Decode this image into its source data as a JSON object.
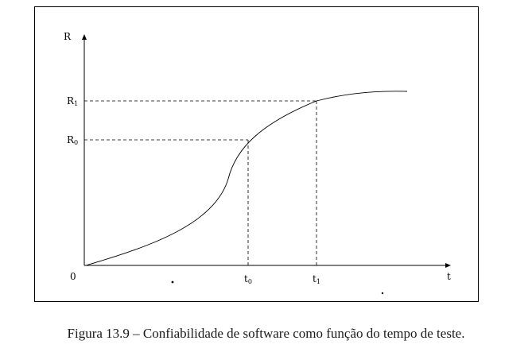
{
  "diagram": {
    "y_axis_label": "R",
    "x_axis_label": "t",
    "origin_label": "0",
    "marks": {
      "r1": {
        "base": "R",
        "sub": "1"
      },
      "r0": {
        "base": "R",
        "sub": "0"
      },
      "t0": {
        "base": "t",
        "sub": "0"
      },
      "t1": {
        "base": "t",
        "sub": "1"
      }
    },
    "colors": {
      "line": "#000000"
    }
  },
  "caption": "Figura 13.9 – Confiabilidade de software como função do tempo de teste."
}
